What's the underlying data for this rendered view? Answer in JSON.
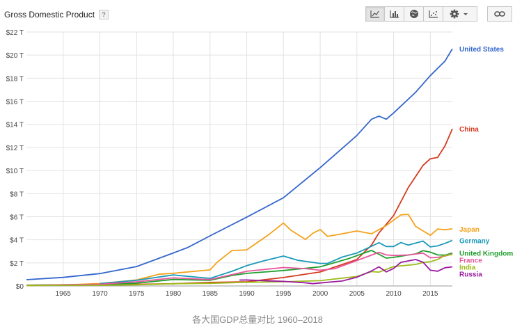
{
  "header": {
    "title": "Gross Domestic Product",
    "help": "?",
    "toolbar": {
      "views": [
        {
          "name": "line-chart-view",
          "icon": "line-chart-icon",
          "active": true
        },
        {
          "name": "bar-chart-view",
          "icon": "bar-chart-icon",
          "active": false
        },
        {
          "name": "map-view",
          "icon": "globe-icon",
          "active": false
        },
        {
          "name": "scatter-view",
          "icon": "scatter-icon",
          "active": false
        }
      ],
      "settings_icon": "gear-icon",
      "link_icon": "link-icon"
    }
  },
  "caption": "各大国GDP总量对比 1960–2018",
  "chart_data": {
    "type": "line",
    "title": "Gross Domestic Product",
    "xlabel": "",
    "ylabel": "",
    "xlim": [
      1960,
      2018
    ],
    "ylim": [
      0,
      22
    ],
    "grid": true,
    "x_ticks": [
      1965,
      1970,
      1975,
      1980,
      1985,
      1990,
      1995,
      2000,
      2005,
      2010,
      2015
    ],
    "y_ticks": [
      {
        "value": 0,
        "label": "$0"
      },
      {
        "value": 2,
        "label": "$2 T"
      },
      {
        "value": 4,
        "label": "$4 T"
      },
      {
        "value": 6,
        "label": "$6 T"
      },
      {
        "value": 8,
        "label": "$8 T"
      },
      {
        "value": 10,
        "label": "$10 T"
      },
      {
        "value": 12,
        "label": "$12 T"
      },
      {
        "value": 14,
        "label": "$14 T"
      },
      {
        "value": 16,
        "label": "$16 T"
      },
      {
        "value": 18,
        "label": "$18 T"
      },
      {
        "value": 20,
        "label": "$20 T"
      },
      {
        "value": 22,
        "label": "$22 T"
      }
    ],
    "series": [
      {
        "name": "United States",
        "color": "#3366cc",
        "x": [
          1960,
          1965,
          1970,
          1975,
          1980,
          1982,
          1985,
          1990,
          1995,
          2000,
          2005,
          2007,
          2008,
          2009,
          2010,
          2013,
          2015,
          2017,
          2018
        ],
        "y": [
          0.54,
          0.74,
          1.07,
          1.68,
          2.86,
          3.34,
          4.34,
          5.96,
          7.64,
          10.25,
          13.04,
          14.45,
          14.71,
          14.45,
          14.99,
          16.78,
          18.22,
          19.48,
          20.54
        ]
      },
      {
        "name": "China",
        "color": "#d63a1e",
        "x": [
          1960,
          1970,
          1980,
          1985,
          1990,
          1995,
          2000,
          2005,
          2007,
          2008,
          2010,
          2012,
          2014,
          2015,
          2016,
          2017,
          2018
        ],
        "y": [
          0.06,
          0.09,
          0.19,
          0.31,
          0.36,
          0.73,
          1.21,
          2.29,
          3.55,
          4.59,
          6.1,
          8.53,
          10.44,
          11.02,
          11.14,
          12.14,
          13.61
        ]
      },
      {
        "name": "Japan",
        "color": "#f4a21b",
        "x": [
          1960,
          1965,
          1970,
          1975,
          1978,
          1980,
          1985,
          1986,
          1988,
          1990,
          1993,
          1995,
          1996,
          1998,
          1999,
          2000,
          2001,
          2003,
          2005,
          2007,
          2009,
          2010,
          2011,
          2012,
          2013,
          2015,
          2016,
          2017,
          2018
        ],
        "y": [
          0.04,
          0.09,
          0.21,
          0.52,
          1.01,
          1.1,
          1.39,
          2.07,
          3.07,
          3.13,
          4.45,
          5.45,
          4.83,
          4.03,
          4.56,
          4.89,
          4.3,
          4.52,
          4.76,
          4.52,
          5.23,
          5.7,
          6.16,
          6.2,
          5.16,
          4.39,
          4.93,
          4.87,
          4.95
        ]
      },
      {
        "name": "Germany",
        "color": "#1a9ab9",
        "x": [
          1970,
          1975,
          1980,
          1985,
          1988,
          1990,
          1992,
          1995,
          1997,
          2000,
          2001,
          2003,
          2005,
          2007,
          2008,
          2009,
          2010,
          2011,
          2012,
          2014,
          2015,
          2016,
          2017,
          2018
        ],
        "y": [
          0.21,
          0.49,
          0.95,
          0.66,
          1.27,
          1.76,
          2.13,
          2.59,
          2.22,
          1.95,
          1.95,
          2.5,
          2.85,
          3.44,
          3.75,
          3.42,
          3.42,
          3.76,
          3.54,
          3.89,
          3.38,
          3.47,
          3.69,
          3.95
        ]
      },
      {
        "name": "United Kingdom",
        "color": "#1f9e2c",
        "x": [
          1960,
          1965,
          1970,
          1975,
          1980,
          1985,
          1988,
          1990,
          1995,
          2000,
          2004,
          2007,
          2009,
          2010,
          2013,
          2014,
          2015,
          2016,
          2017,
          2018
        ],
        "y": [
          0.07,
          0.1,
          0.13,
          0.24,
          0.56,
          0.49,
          0.91,
          1.09,
          1.34,
          1.66,
          2.4,
          3.08,
          2.41,
          2.48,
          2.78,
          3.06,
          2.93,
          2.69,
          2.67,
          2.86
        ]
      },
      {
        "name": "France",
        "color": "#e8559c",
        "x": [
          1960,
          1965,
          1970,
          1975,
          1980,
          1985,
          1990,
          1995,
          1998,
          2000,
          2002,
          2005,
          2008,
          2009,
          2010,
          2012,
          2014,
          2015,
          2016,
          2017,
          2018
        ],
        "y": [
          0.06,
          0.1,
          0.15,
          0.36,
          0.7,
          0.55,
          1.27,
          1.6,
          1.5,
          1.36,
          1.5,
          2.2,
          2.92,
          2.69,
          2.64,
          2.68,
          2.85,
          2.44,
          2.47,
          2.59,
          2.78
        ]
      },
      {
        "name": "India",
        "color": "#9cbb1a",
        "x": [
          1960,
          1965,
          1970,
          1975,
          1980,
          1985,
          1990,
          1995,
          2000,
          2005,
          2007,
          2008,
          2010,
          2013,
          2014,
          2015,
          2016,
          2017,
          2018
        ],
        "y": [
          0.04,
          0.06,
          0.06,
          0.1,
          0.19,
          0.23,
          0.32,
          0.36,
          0.46,
          0.82,
          1.24,
          1.2,
          1.68,
          1.86,
          2.04,
          2.1,
          2.29,
          2.65,
          2.72
        ]
      },
      {
        "name": "Russia",
        "color": "#9a1aa0",
        "x": [
          1989,
          1990,
          1993,
          1995,
          1998,
          1999,
          2000,
          2003,
          2005,
          2007,
          2008,
          2009,
          2010,
          2011,
          2013,
          2014,
          2015,
          2016,
          2017,
          2018
        ],
        "y": [
          0.51,
          0.52,
          0.44,
          0.4,
          0.27,
          0.2,
          0.26,
          0.43,
          0.76,
          1.3,
          1.66,
          1.22,
          1.52,
          2.05,
          2.29,
          2.06,
          1.36,
          1.28,
          1.58,
          1.66
        ]
      }
    ],
    "legend": "end-of-line labels on right"
  }
}
